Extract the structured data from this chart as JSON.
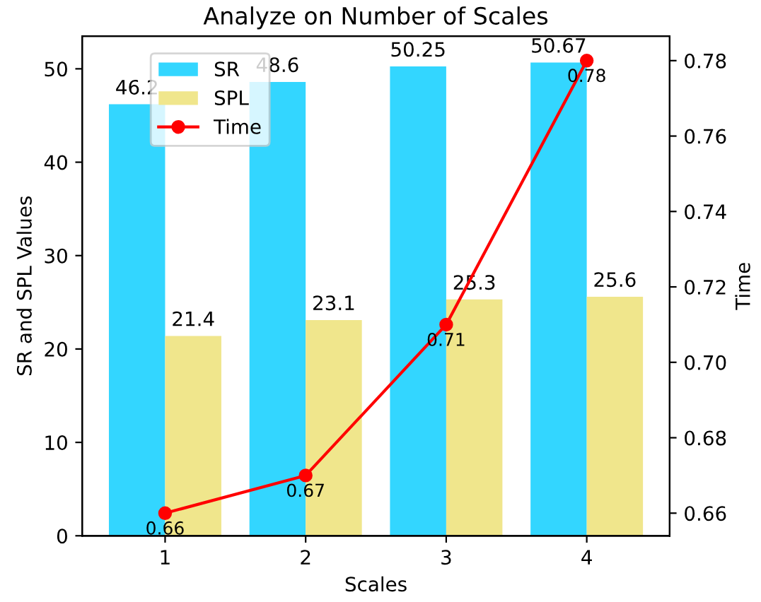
{
  "chart_data": {
    "type": "bar",
    "title": "Analyze on Number of Scales",
    "xlabel": "Scales",
    "ylabel": "SR and SPL Values",
    "y2label": "Time",
    "categories": [
      "1",
      "2",
      "3",
      "4"
    ],
    "series": [
      {
        "name": "SR",
        "color": "#33d6ff",
        "values": [
          46.2,
          48.6,
          50.25,
          50.67
        ]
      },
      {
        "name": "SPL",
        "color": "#f0e68c",
        "values": [
          21.4,
          23.1,
          25.3,
          25.6
        ]
      },
      {
        "name": "Time",
        "type": "line",
        "axis": "y2",
        "color": "#ff0000",
        "values": [
          0.66,
          0.67,
          0.71,
          0.78
        ]
      }
    ],
    "ylim": [
      0,
      53.5
    ],
    "yticks": [
      0,
      10,
      20,
      30,
      40,
      50
    ],
    "y2lim": [
      0.654,
      0.7865
    ],
    "y2ticks": [
      0.66,
      0.68,
      {
        "value": 0.7,
        "label": "0.70"
      },
      0.72,
      0.74,
      0.76,
      0.78
    ],
    "data_labels": true,
    "legend": "top left",
    "marker": "circle",
    "line_style": "solid",
    "grid": false
  }
}
